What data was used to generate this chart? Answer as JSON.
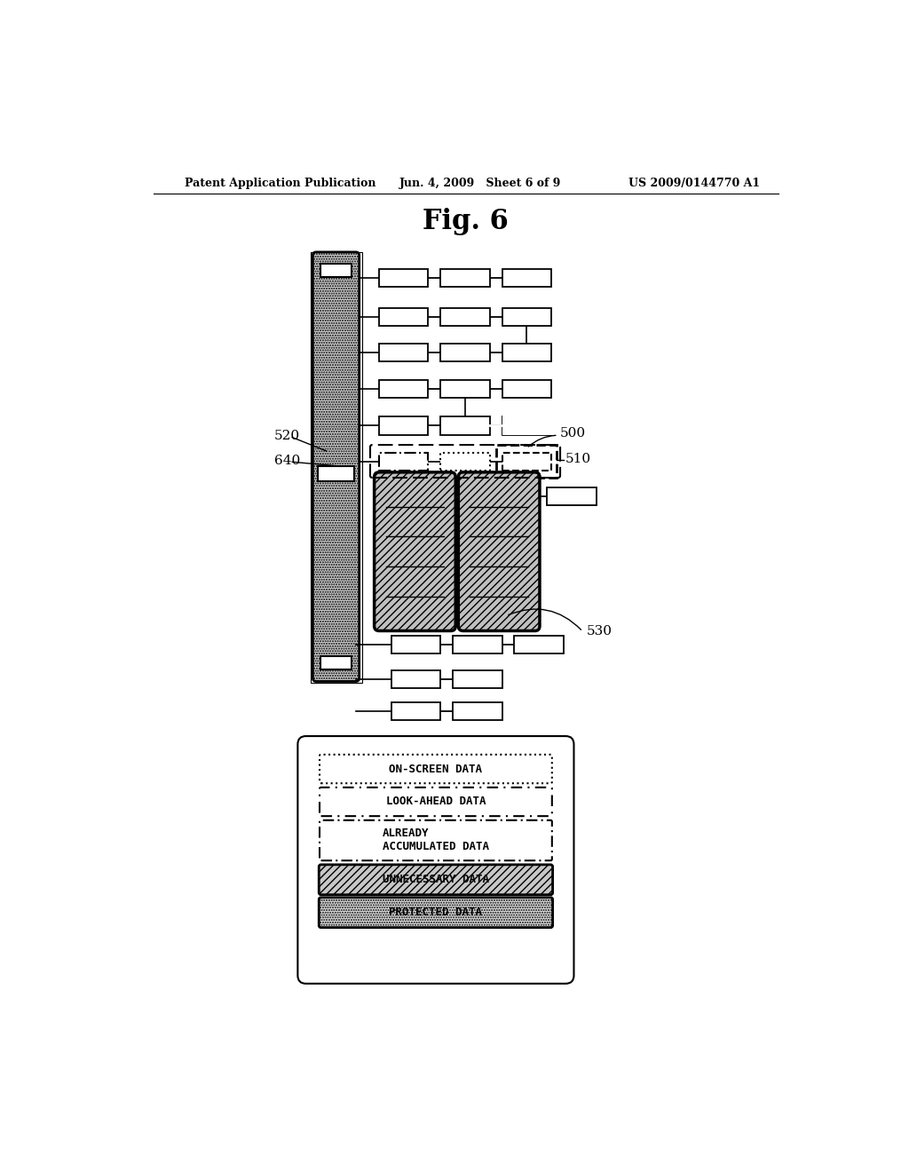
{
  "title": "Fig. 6",
  "header_left": "Patent Application Publication",
  "header_middle": "Jun. 4, 2009   Sheet 6 of 9",
  "header_right": "US 2009/0144770 A1",
  "bg_color": "#ffffff",
  "label_520": "520",
  "label_640": "640",
  "label_500": "500",
  "label_510": "510",
  "label_530": "530"
}
